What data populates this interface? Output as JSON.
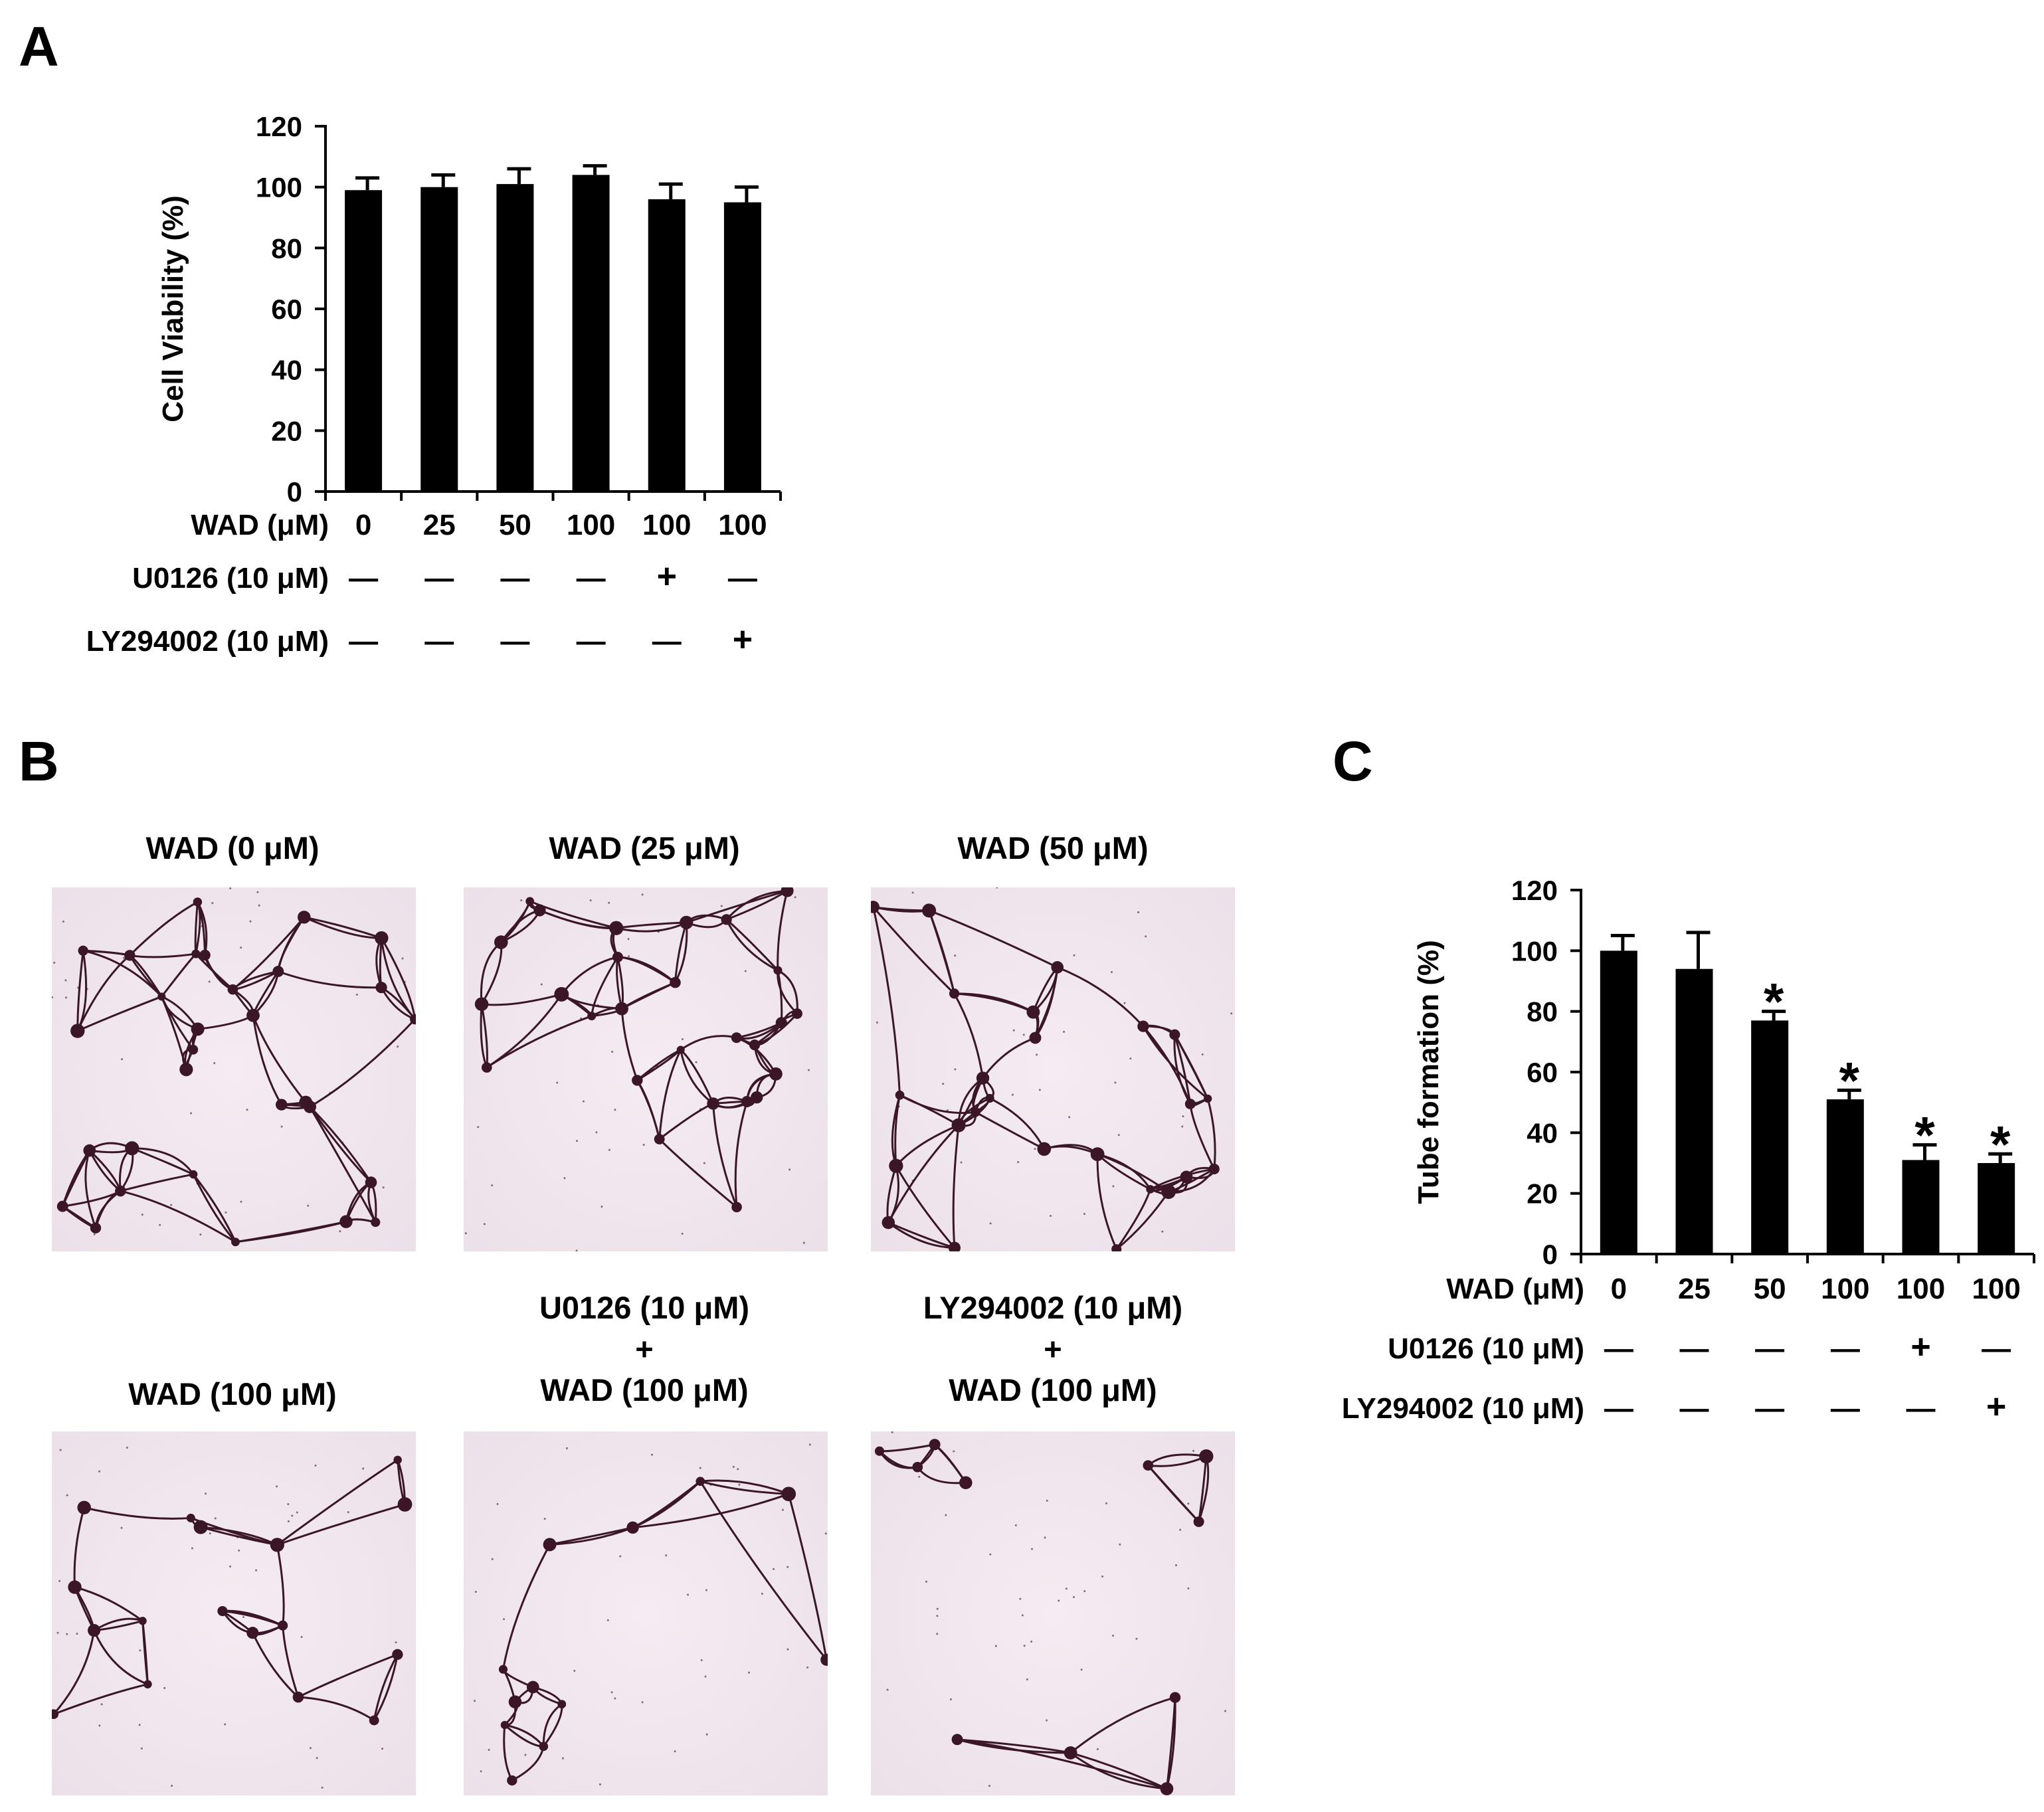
{
  "panels": {
    "a": {
      "label": "A"
    },
    "b": {
      "label": "B"
    },
    "c": {
      "label": "C"
    }
  },
  "colors": {
    "bar": "#000000",
    "micrograph_background": "#ece0e9",
    "micrograph_tubes": "#3a1626"
  },
  "chart_data": [
    {
      "id": "A",
      "type": "bar",
      "ylabel": "Cell Viability  (%)",
      "ylim": [
        0,
        120
      ],
      "yticks": [
        0,
        20,
        40,
        60,
        80,
        100,
        120
      ],
      "grid": false,
      "categories": [
        "0",
        "25",
        "50",
        "100",
        "100",
        "100"
      ],
      "values": [
        99,
        100,
        101,
        104,
        96,
        95
      ],
      "errors": [
        4,
        4,
        5,
        3,
        5,
        5
      ],
      "annotations": [
        "",
        "",
        "",
        "",
        "",
        ""
      ],
      "conditions": [
        {
          "label": "WAD (μM)",
          "values": [
            "0",
            "25",
            "50",
            "100",
            "100",
            "100"
          ]
        },
        {
          "label": "U0126 (10 μM)",
          "values": [
            "—",
            "—",
            "—",
            "—",
            "+",
            "—"
          ]
        },
        {
          "label": "LY294002 (10 μM)",
          "values": [
            "—",
            "—",
            "—",
            "—",
            "—",
            "+"
          ]
        }
      ]
    },
    {
      "id": "C",
      "type": "bar",
      "ylabel": "Tube formation (%)",
      "ylim": [
        0,
        120
      ],
      "yticks": [
        0,
        20,
        40,
        60,
        80,
        100,
        120
      ],
      "grid": false,
      "categories": [
        "0",
        "25",
        "50",
        "100",
        "100",
        "100"
      ],
      "values": [
        100,
        94,
        77,
        51,
        31,
        30
      ],
      "errors": [
        5,
        12,
        3,
        3,
        5,
        3
      ],
      "annotations": [
        "",
        "",
        "*",
        "*",
        "*",
        "*"
      ],
      "conditions": [
        {
          "label": "WAD (μM)",
          "values": [
            "0",
            "25",
            "50",
            "100",
            "100",
            "100"
          ]
        },
        {
          "label": "U0126 (10 μM)",
          "values": [
            "—",
            "—",
            "—",
            "—",
            "+",
            "—"
          ]
        },
        {
          "label": "LY294002 (10 μM)",
          "values": [
            "—",
            "—",
            "—",
            "—",
            "—",
            "+"
          ]
        }
      ]
    }
  ],
  "micrographs": [
    {
      "title": "WAD (0 μM)",
      "density": 1.0
    },
    {
      "title": "WAD (25 μM)",
      "density": 0.9
    },
    {
      "title": "WAD (50 μM)",
      "density": 0.8
    },
    {
      "title": "WAD (100 μM)",
      "density": 0.5
    },
    {
      "title": "U0126 (10 μM)\n+\nWAD (100 μM)",
      "density": 0.3
    },
    {
      "title": "LY294002 (10 μM)\n+\nWAD (100 μM)",
      "density": 0.28
    }
  ]
}
